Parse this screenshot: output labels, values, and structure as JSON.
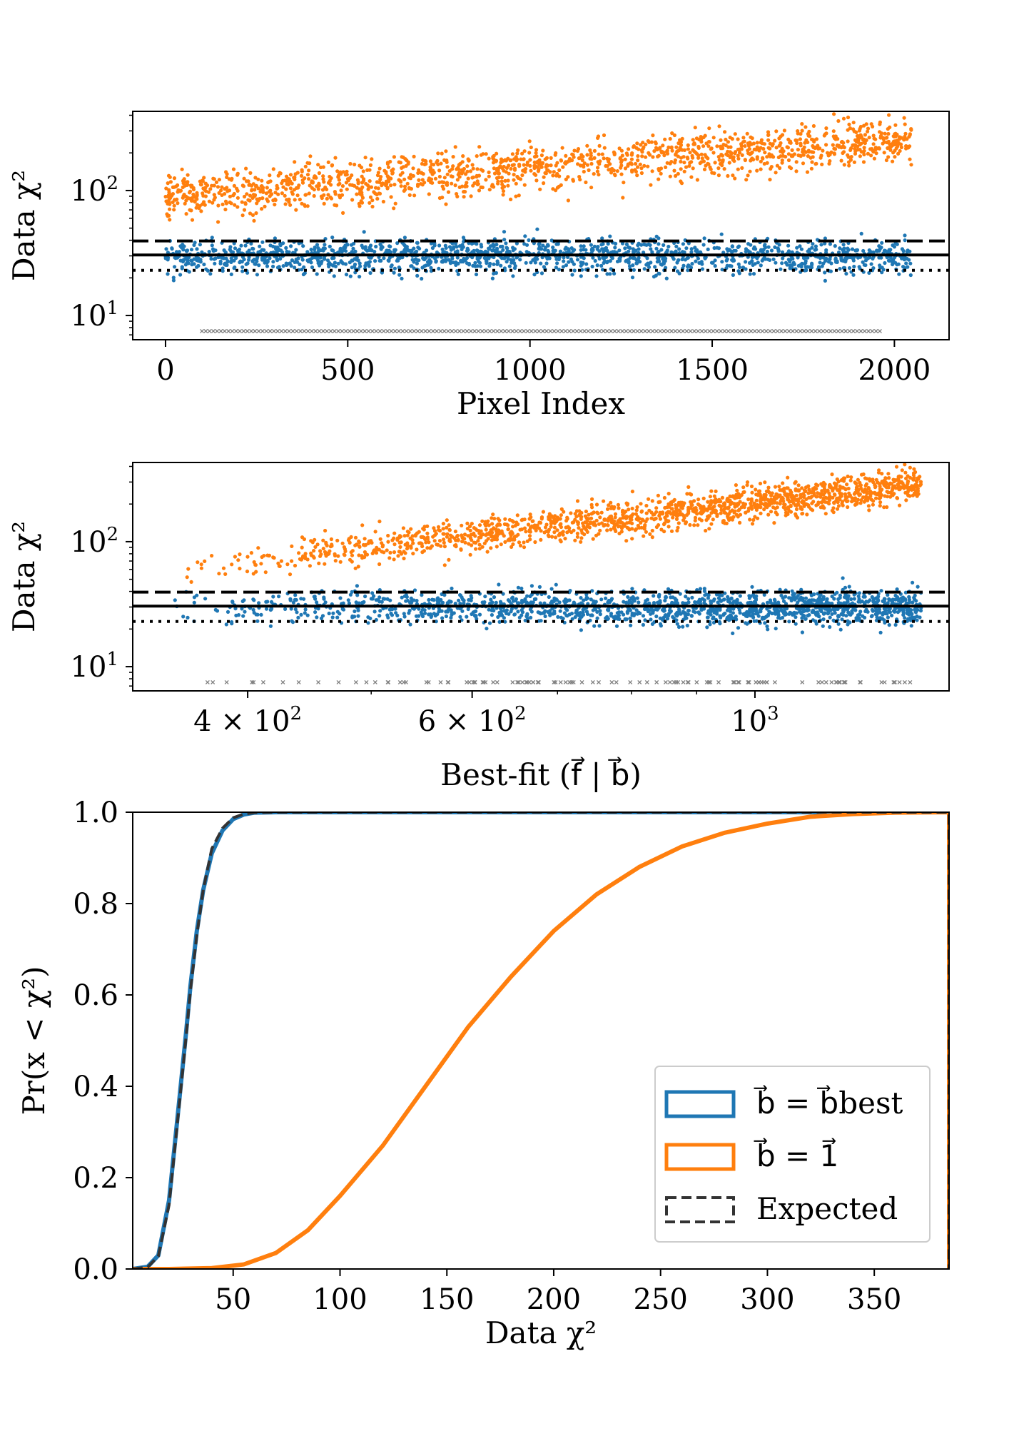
{
  "colors": {
    "blue": "#1f77b4",
    "orange": "#ff7f0e",
    "gray": "#808080",
    "black": "#000000",
    "expected": "#333333"
  },
  "chart_data": [
    {
      "type": "scatter",
      "xlabel": "Pixel Index",
      "ylabel": "Data χ²",
      "xlim": [
        -90,
        2150
      ],
      "ylim": [
        6.4,
        430
      ],
      "yscale": "log",
      "xticks": [
        0,
        500,
        1000,
        1500,
        2000
      ],
      "xtick_labels": [
        "0",
        "500",
        "1000",
        "1500",
        "2000"
      ],
      "yticks": [
        10,
        100
      ],
      "ytick_labels": [
        [
          "10",
          "1"
        ],
        [
          "10",
          "2"
        ]
      ],
      "hlines": [
        {
          "y": 39.5,
          "style": "dashed"
        },
        {
          "y": 30.5,
          "style": "solid"
        },
        {
          "y": 23,
          "style": "dotted"
        }
      ],
      "series": [
        {
          "color": "orange",
          "x_range": [
            0,
            2047
          ],
          "trend_start": 90,
          "trend_end": 260,
          "scatter": 0.3
        },
        {
          "color": "blue",
          "x_range": [
            0,
            2047
          ],
          "center": 30,
          "scatter": 0.22
        },
        {
          "color": "gray",
          "x_range": [
            100,
            1960
          ],
          "y": 7.5,
          "marker": "x"
        }
      ]
    },
    {
      "type": "scatter",
      "xlabel": "Best-fit (f⃗ | b⃗)",
      "ylabel": "Data χ²",
      "xscale": "log",
      "xlim": [
        325,
        1420
      ],
      "ylim": [
        6.4,
        430
      ],
      "yscale": "log",
      "xticks": [
        400,
        600,
        1000
      ],
      "xtick_labels": [
        [
          "4 × 10",
          "2"
        ],
        [
          "6 × 10",
          "2"
        ],
        [
          "10",
          "3"
        ]
      ],
      "yticks": [
        10,
        100
      ],
      "ytick_labels": [
        [
          "10",
          "1"
        ],
        [
          "10",
          "2"
        ]
      ],
      "hlines": [
        {
          "y": 39.5,
          "style": "dashed"
        },
        {
          "y": 30.5,
          "style": "solid"
        },
        {
          "y": 23,
          "style": "dotted"
        }
      ],
      "series": [
        {
          "color": "orange",
          "x_range": [
            350,
            1350
          ],
          "trend_start": 60,
          "trend_end": 290,
          "scatter": 0.22
        },
        {
          "color": "blue",
          "x_range": [
            350,
            1350
          ],
          "center": 30,
          "scatter": 0.22
        },
        {
          "color": "gray",
          "x_range": [
            350,
            1350
          ],
          "y": 7.5,
          "marker": "x"
        }
      ]
    },
    {
      "type": "line",
      "subtype": "cumulative step histogram",
      "xlabel": "Data χ²",
      "ylabel": "Pr(x < χ²)",
      "xlim": [
        3,
        385
      ],
      "ylim": [
        0,
        1.0
      ],
      "xticks": [
        50,
        100,
        150,
        200,
        250,
        300,
        350
      ],
      "xtick_labels": [
        "50",
        "100",
        "150",
        "200",
        "250",
        "300",
        "350"
      ],
      "yticks": [
        0.0,
        0.2,
        0.4,
        0.6,
        0.8,
        1.0
      ],
      "ytick_labels": [
        "0.0",
        "0.2",
        "0.4",
        "0.6",
        "0.8",
        "1.0"
      ],
      "legend_position": "lower right",
      "series": [
        {
          "name": "b⃗ = b⃗best",
          "color": "blue",
          "style": "solid",
          "x": [
            3,
            10,
            15,
            20,
            25,
            28,
            30,
            33,
            36,
            40,
            45,
            50,
            55,
            60,
            70,
            385
          ],
          "y": [
            0.0,
            0.005,
            0.03,
            0.15,
            0.38,
            0.52,
            0.62,
            0.74,
            0.83,
            0.91,
            0.96,
            0.985,
            0.995,
            0.999,
            1.0,
            1.0
          ]
        },
        {
          "name": "b⃗ = 1⃗",
          "color": "orange",
          "style": "solid",
          "x": [
            3,
            20,
            40,
            55,
            70,
            85,
            100,
            120,
            140,
            160,
            180,
            200,
            220,
            240,
            260,
            280,
            300,
            320,
            340,
            360,
            385
          ],
          "y": [
            0.0,
            0.0,
            0.002,
            0.01,
            0.035,
            0.085,
            0.16,
            0.27,
            0.4,
            0.53,
            0.64,
            0.74,
            0.82,
            0.88,
            0.925,
            0.955,
            0.975,
            0.99,
            0.996,
            0.999,
            1.0
          ]
        },
        {
          "name": "Expected",
          "color": "expected",
          "style": "dashed",
          "x": [
            3,
            10,
            15,
            20,
            25,
            28,
            30,
            33,
            36,
            40,
            45,
            50,
            55,
            60,
            70,
            385
          ],
          "y": [
            0.0,
            0.004,
            0.028,
            0.14,
            0.37,
            0.51,
            0.61,
            0.73,
            0.83,
            0.92,
            0.965,
            0.988,
            0.996,
            0.999,
            1.0,
            1.0
          ]
        }
      ]
    }
  ]
}
